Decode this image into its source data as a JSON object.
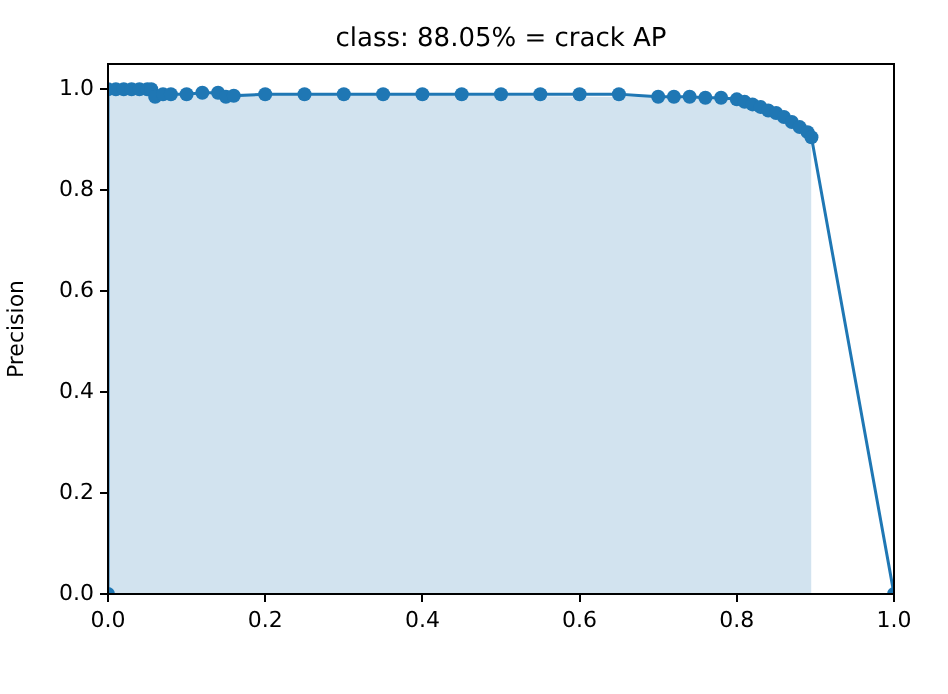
{
  "chart_data": {
    "type": "line",
    "title": "class: 88.05% = crack AP",
    "ylabel": "Precision",
    "xlim": [
      0,
      1
    ],
    "ylim": [
      0,
      1.05
    ],
    "xticks": [
      {
        "value": 0,
        "label": "0.0"
      },
      0.2,
      0.4,
      0.6,
      0.8,
      {
        "value": 1,
        "label": "1.0"
      }
    ],
    "yticks": [
      {
        "value": 0,
        "label": "0.0"
      },
      0.2,
      0.4,
      0.6,
      0.8,
      {
        "value": 1,
        "label": "1.0"
      }
    ],
    "grid": false,
    "legend": false,
    "line_style": "solid",
    "series": [
      {
        "type": "area",
        "color": "#d2e3ef",
        "x": [
          0,
          0.055,
          0.056,
          0.78,
          0.8,
          0.82,
          0.84,
          0.86,
          0.88,
          0.895
        ],
        "values": [
          1,
          1,
          0.993,
          0.983,
          0.98,
          0.97,
          0.958,
          0.945,
          0.925,
          0.905
        ]
      },
      {
        "color": "#1f77b4",
        "marker": "circle",
        "x": [
          0,
          0,
          0.01,
          0.02,
          0.03,
          0.04,
          0.05,
          0.055,
          0.06,
          0.07,
          0.08,
          0.1,
          0.12,
          0.14,
          0.15,
          0.16,
          0.2,
          0.25,
          0.3,
          0.35,
          0.4,
          0.45,
          0.5,
          0.55,
          0.6,
          0.65,
          0.7,
          0.72,
          0.74,
          0.76,
          0.78,
          0.8,
          0.81,
          0.82,
          0.83,
          0.84,
          0.85,
          0.86,
          0.87,
          0.88,
          0.89,
          0.895,
          1.0
        ],
        "values": [
          0,
          1,
          1,
          1,
          1,
          1,
          1,
          1,
          0.985,
          0.99,
          0.99,
          0.99,
          0.993,
          0.993,
          0.985,
          0.987,
          0.99,
          0.99,
          0.99,
          0.99,
          0.99,
          0.99,
          0.99,
          0.99,
          0.99,
          0.99,
          0.985,
          0.985,
          0.985,
          0.983,
          0.983,
          0.98,
          0.975,
          0.97,
          0.965,
          0.958,
          0.953,
          0.945,
          0.935,
          0.925,
          0.915,
          0.905,
          0
        ]
      }
    ]
  }
}
